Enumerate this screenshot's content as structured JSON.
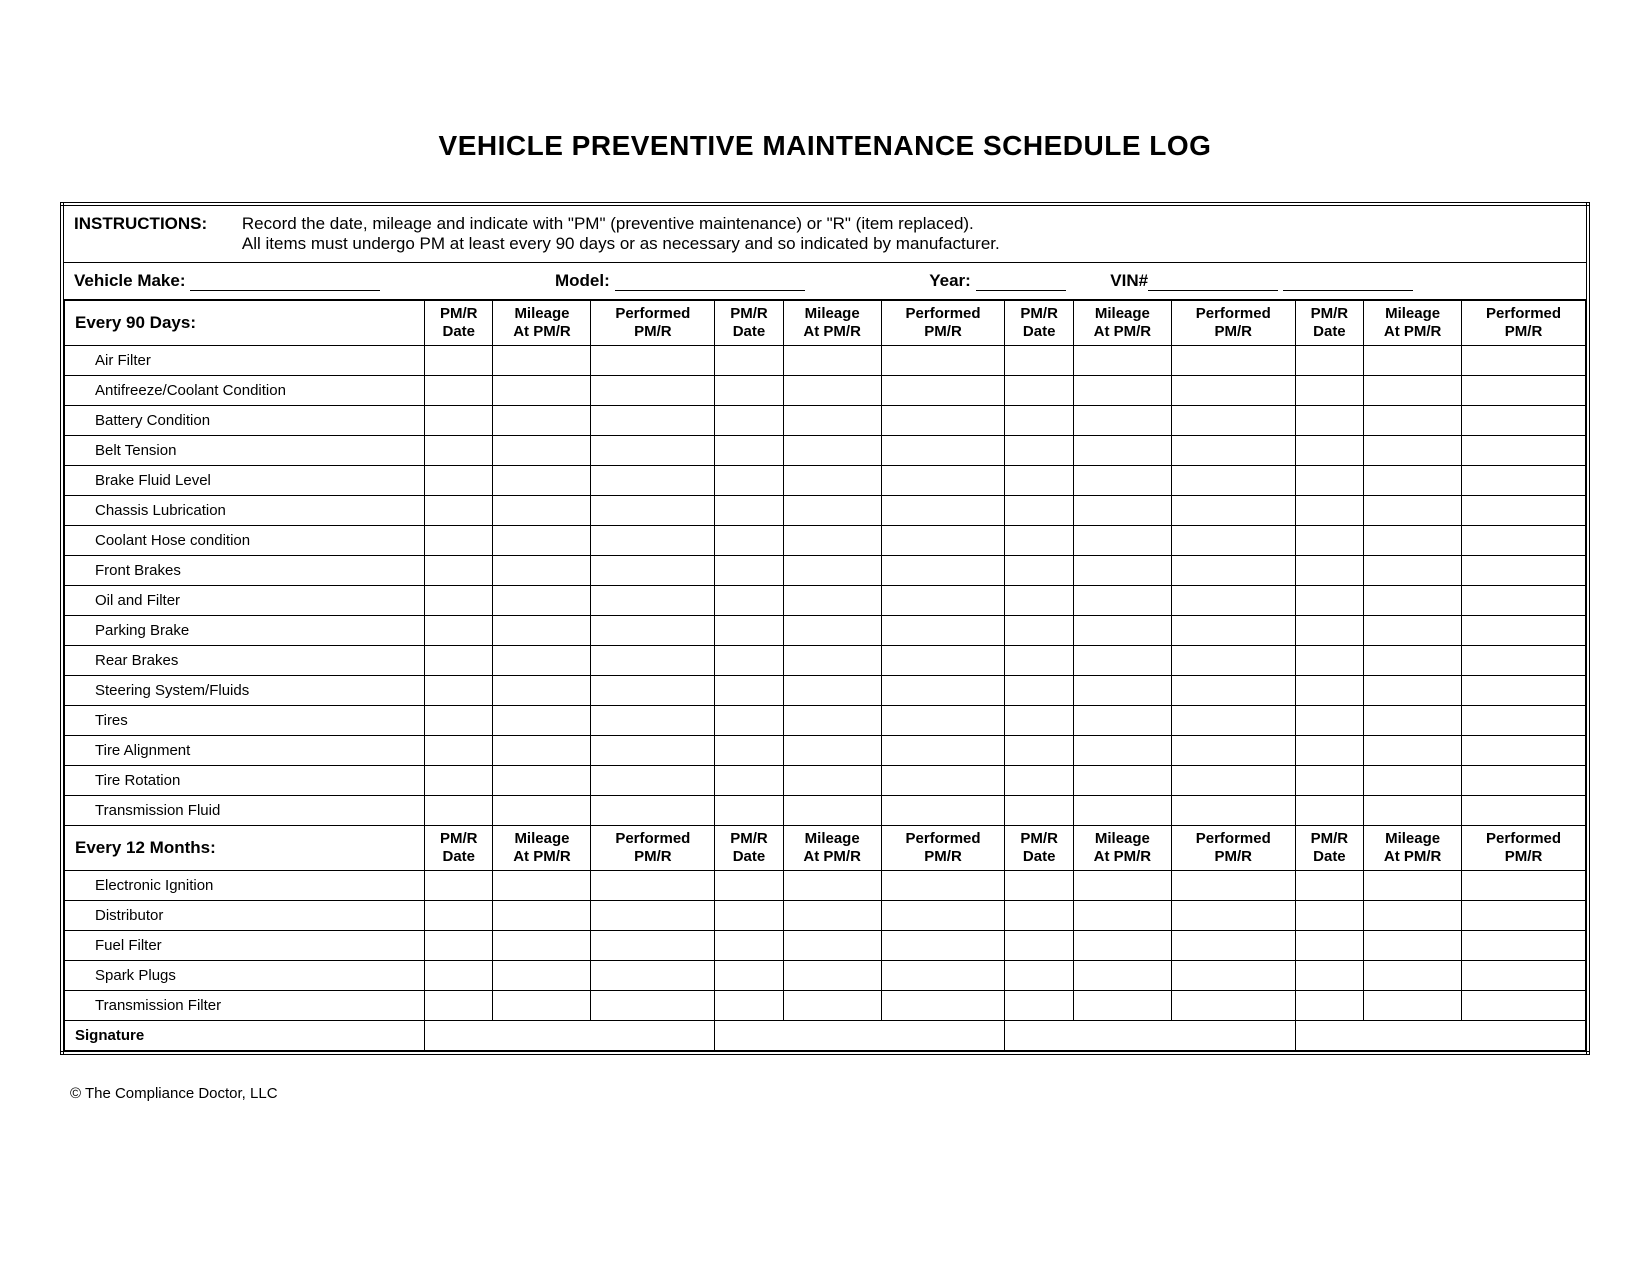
{
  "title": "VEHICLE PREVENTIVE MAINTENANCE SCHEDULE LOG",
  "instructions": {
    "label": "INSTRUCTIONS:",
    "line1": "Record the date, mileage and indicate with \"PM\" (preventive maintenance) or \"R\" (item replaced).",
    "line2": "All items must undergo PM at least every 90 days or as necessary and so indicated by manufacturer."
  },
  "vehicle_info": {
    "make_label": "Vehicle Make:",
    "model_label": "Model:",
    "year_label": "Year:",
    "vin_label": "VIN#"
  },
  "column_headers": {
    "pmr_date": "PM/R Date",
    "mileage": "Mileage At PM/R",
    "performed": "Performed PM/R"
  },
  "sections": [
    {
      "header": "Every 90 Days:",
      "items": [
        "Air Filter",
        "Antifreeze/Coolant Condition",
        "Battery Condition",
        "Belt Tension",
        "Brake Fluid Level",
        "Chassis Lubrication",
        "Coolant Hose condition",
        "Front Brakes",
        "Oil and Filter",
        "Parking Brake",
        "Rear Brakes",
        "Steering System/Fluids",
        "Tires",
        "Tire Alignment",
        "Tire Rotation",
        "Transmission Fluid"
      ]
    },
    {
      "header": "Every 12 Months:",
      "items": [
        "Electronic Ignition",
        "Distributor",
        "Fuel Filter",
        "Spark Plugs",
        "Transmission Filter"
      ]
    }
  ],
  "signature_label": "Signature",
  "copyright": "© The Compliance Doctor, LLC",
  "layout": {
    "column_groups": 4,
    "border_color": "#000000",
    "background_color": "#ffffff",
    "title_fontsize": 28,
    "body_fontsize": 17,
    "header_fontsize": 15
  }
}
